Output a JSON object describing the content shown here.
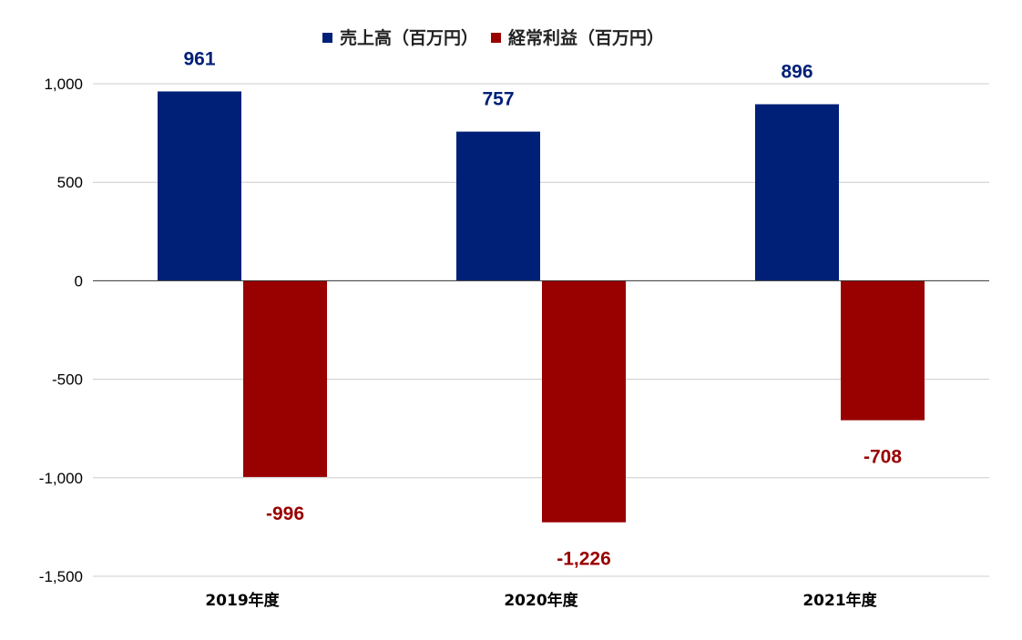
{
  "chart_data": {
    "type": "bar",
    "categories": [
      "2019年度",
      "2020年度",
      "2021年度"
    ],
    "series": [
      {
        "name": "売上高（百万円）",
        "values": [
          961,
          757,
          896
        ],
        "color": "#002078"
      },
      {
        "name": "経常利益（百万円）",
        "values": [
          -996,
          -1226,
          -708
        ],
        "color": "#990000"
      }
    ],
    "data_labels": [
      [
        "961",
        "757",
        "896"
      ],
      [
        "-996",
        "-1,226",
        "-708"
      ]
    ],
    "yticks": [
      1000,
      500,
      0,
      -500,
      -1000,
      -1500
    ],
    "ytick_labels": [
      "1,000",
      "500",
      "0",
      "-500",
      "-1,000",
      "-1,500"
    ],
    "ylim": [
      -1500,
      1000
    ],
    "grid": true,
    "legend_position": "top-center"
  }
}
